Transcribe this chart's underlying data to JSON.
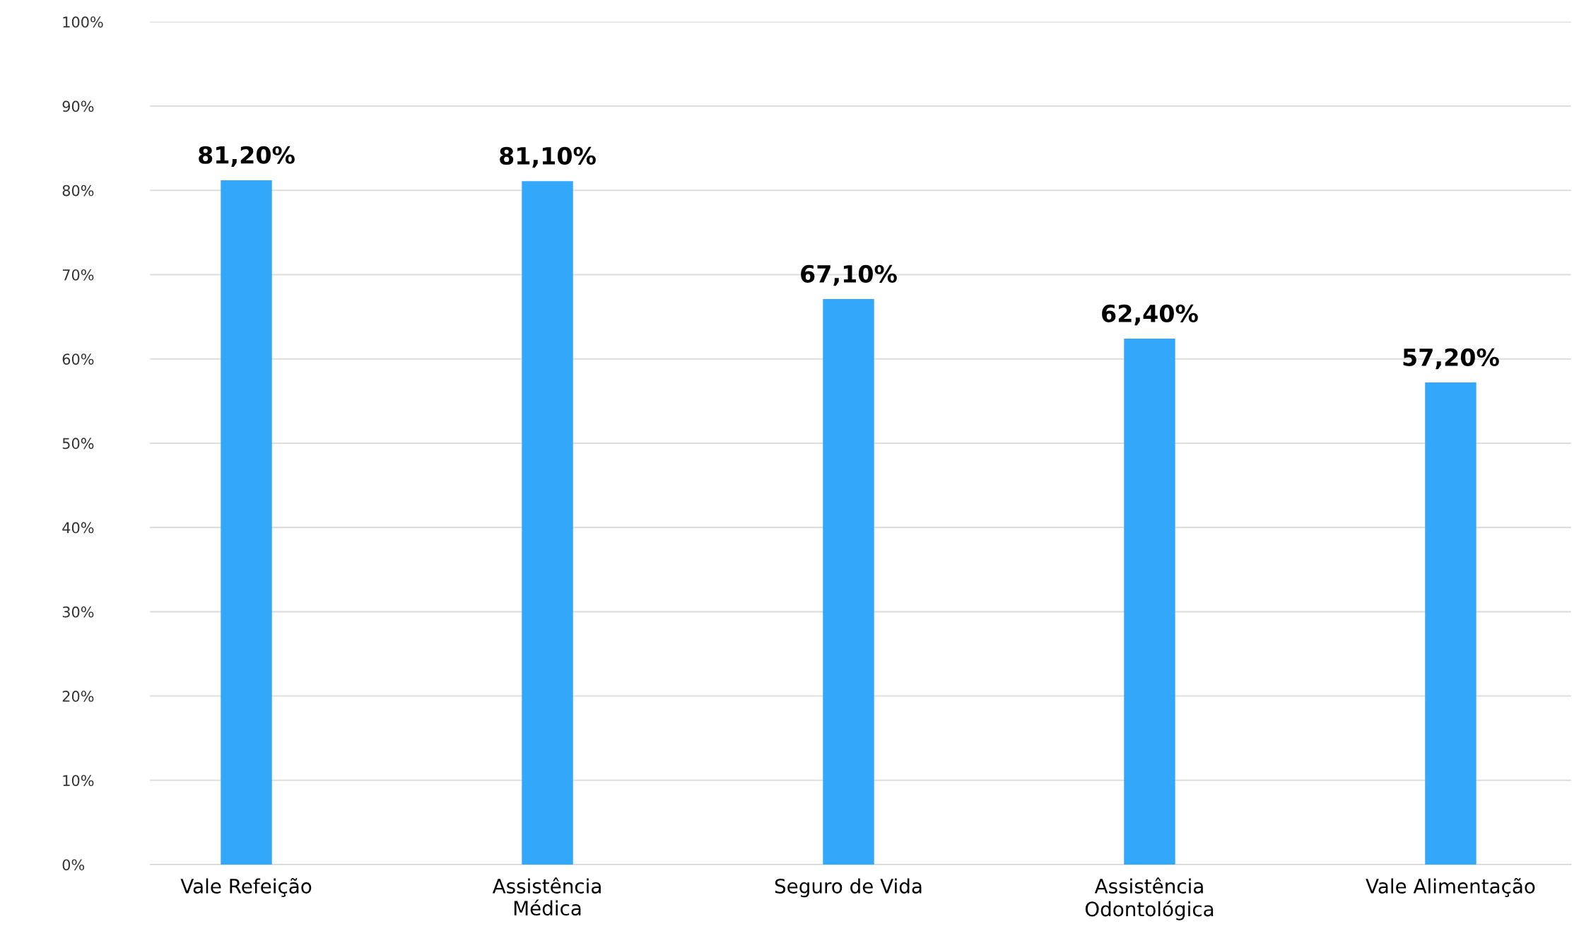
{
  "chart_data": {
    "type": "bar",
    "categories": [
      "Vale Refeição",
      "Assistência\nMédica",
      "Seguro de Vida",
      "Assistência\nOdontológica",
      "Vale Alimentação"
    ],
    "values": [
      81.2,
      81.1,
      67.1,
      62.4,
      57.2
    ],
    "value_labels": [
      "81,20%",
      "81,10%",
      "67,10%",
      "62,40%",
      "57,20%"
    ],
    "color": "#33a8fa",
    "ylim": [
      0,
      100
    ],
    "yticks": [
      {
        "value": 0,
        "label": "0%"
      },
      {
        "value": 10,
        "label": "10%"
      },
      {
        "value": 20,
        "label": "20%"
      },
      {
        "value": 30,
        "label": "30%"
      },
      {
        "value": 40,
        "label": "40%"
      },
      {
        "value": 50,
        "label": "50%"
      },
      {
        "value": 60,
        "label": "60%"
      },
      {
        "value": 70,
        "label": "70%"
      },
      {
        "value": 80,
        "label": "80%"
      },
      {
        "value": 90,
        "label": "90%"
      },
      {
        "value": 100,
        "label": "100%"
      }
    ],
    "grid": "y"
  }
}
